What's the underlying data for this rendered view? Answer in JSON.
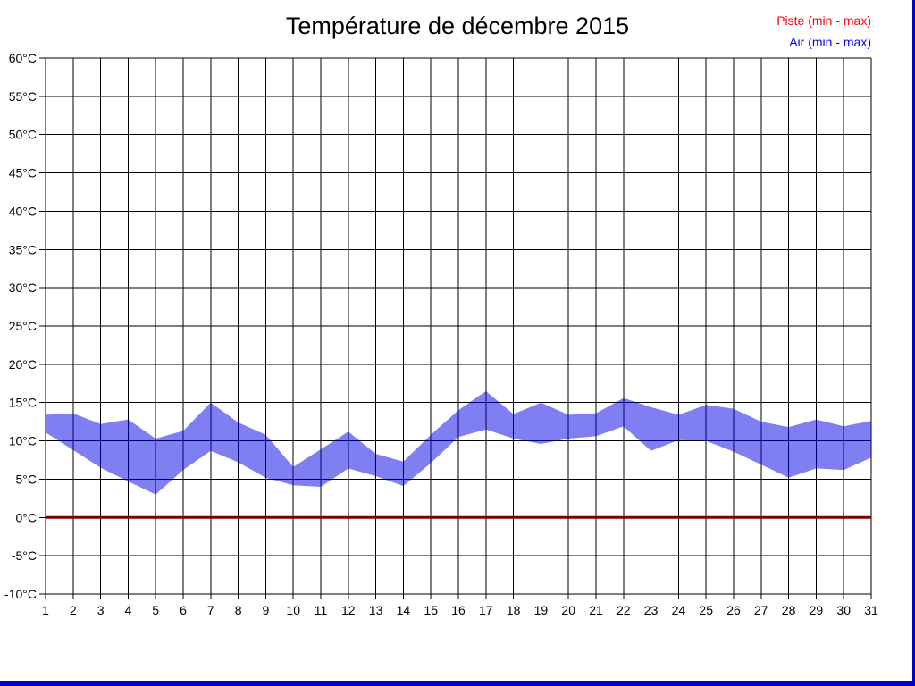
{
  "page": {
    "background": "#ffffff",
    "border_color": "#0000cc"
  },
  "chart_data": {
    "type": "area",
    "title": "Température de décembre 2015",
    "x": [
      1,
      2,
      3,
      4,
      5,
      6,
      7,
      8,
      9,
      10,
      11,
      12,
      13,
      14,
      15,
      16,
      17,
      18,
      19,
      20,
      21,
      22,
      23,
      24,
      25,
      26,
      27,
      28,
      29,
      30,
      31
    ],
    "xlabel": "",
    "ylabel": "",
    "ylim": [
      -10,
      60
    ],
    "ytick_step": 5,
    "ytick_suffix": "°C",
    "grid": true,
    "grid_color": "#000000",
    "legend_position": "top-right",
    "series": [
      {
        "name": "Piste (min - max)",
        "type": "line",
        "legend_color": "#ff0000",
        "line_color": "#7f0000",
        "constant": 0
      },
      {
        "name": "Air (min - max)",
        "type": "band",
        "legend_color": "#0000ff",
        "fill_color": "#0000e6",
        "fill_opacity": 0.5,
        "min": [
          11.1,
          8.8,
          6.5,
          4.7,
          3.0,
          6.2,
          8.7,
          7.2,
          5.2,
          4.2,
          4.0,
          6.4,
          5.4,
          4.1,
          7.1,
          10.5,
          11.5,
          10.3,
          9.6,
          10.3,
          10.6,
          11.9,
          8.7,
          10.1,
          10.0,
          8.6,
          6.9,
          5.2,
          6.4,
          6.2,
          7.8
        ],
        "max": [
          13.4,
          13.6,
          12.2,
          12.8,
          10.3,
          11.3,
          15.0,
          12.4,
          10.8,
          6.6,
          8.9,
          11.2,
          8.3,
          7.3,
          10.8,
          14.0,
          16.5,
          13.5,
          15.0,
          13.4,
          13.6,
          15.6,
          14.4,
          13.4,
          14.7,
          14.2,
          12.5,
          11.8,
          12.8,
          11.9,
          12.6
        ]
      }
    ]
  }
}
